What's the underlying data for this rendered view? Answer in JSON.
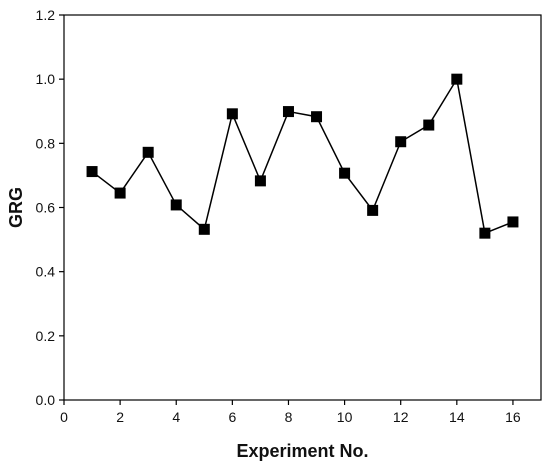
{
  "chart_data": {
    "type": "line",
    "title": "",
    "xlabel": "Experiment No.",
    "ylabel": "GRG",
    "xlim": [
      0,
      17
    ],
    "ylim": [
      0.0,
      1.2
    ],
    "xticks": [
      0,
      2,
      4,
      6,
      8,
      10,
      12,
      14,
      16
    ],
    "yticks": [
      0.0,
      0.2,
      0.4,
      0.6,
      0.8,
      1.0,
      1.2
    ],
    "xtick_labels": [
      "0",
      "2",
      "4",
      "6",
      "8",
      "10",
      "12",
      "14",
      "16"
    ],
    "ytick_labels": [
      "0.0",
      "0.2",
      "0.4",
      "0.6",
      "0.8",
      "1.0",
      "1.2"
    ],
    "grid": false,
    "marker": "square",
    "color": "#000000",
    "series": [
      {
        "x": [
          1,
          2,
          3,
          4,
          5,
          6,
          7,
          8,
          9,
          10,
          11,
          12,
          13,
          14,
          15,
          16
        ],
        "values": [
          0.712,
          0.645,
          0.772,
          0.608,
          0.532,
          0.892,
          0.683,
          0.899,
          0.883,
          0.707,
          0.591,
          0.805,
          0.857,
          1.0,
          0.52,
          0.555
        ]
      }
    ]
  }
}
